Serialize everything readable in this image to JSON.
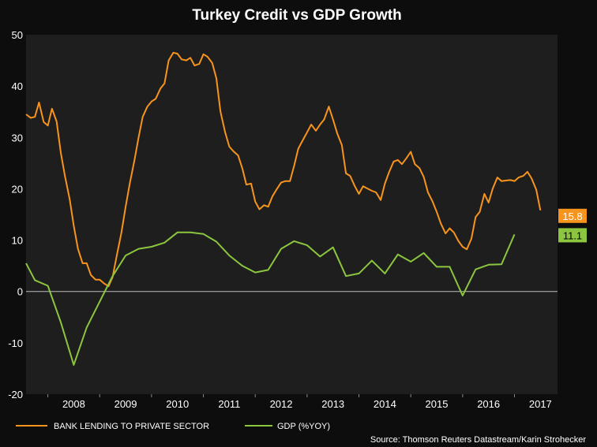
{
  "chart_data": {
    "type": "line",
    "title": "Turkey Credit vs GDP Growth",
    "ylim": [
      -20,
      50
    ],
    "y_ticks": [
      -20,
      -10,
      0,
      10,
      20,
      30,
      40,
      50
    ],
    "x_ticks": [
      "2008",
      "2009",
      "2010",
      "2011",
      "2012",
      "2013",
      "2014",
      "2015",
      "2016",
      "2017"
    ],
    "x_range": [
      2007.58,
      2017.83
    ],
    "grid": false,
    "zero_line": true,
    "legend_position": "bottom-left",
    "source": "Source: Thomson Reuters Datastream/Karin Strohecker",
    "series": [
      {
        "name": "BANK LENDING TO PRIVATE SECTOR",
        "color": "#f7941d",
        "last_label": "15.8",
        "points": [
          [
            2007.58,
            34.5
          ],
          [
            2007.67,
            33.8
          ],
          [
            2007.75,
            34.0
          ],
          [
            2007.83,
            36.8
          ],
          [
            2007.92,
            33.0
          ],
          [
            2008.0,
            32.3
          ],
          [
            2008.08,
            35.6
          ],
          [
            2008.17,
            33.1
          ],
          [
            2008.25,
            27.0
          ],
          [
            2008.33,
            22.5
          ],
          [
            2008.42,
            18.0
          ],
          [
            2008.5,
            12.8
          ],
          [
            2008.58,
            8.3
          ],
          [
            2008.67,
            5.5
          ],
          [
            2008.75,
            5.5
          ],
          [
            2008.83,
            3.2
          ],
          [
            2008.92,
            2.3
          ],
          [
            2009.0,
            2.3
          ],
          [
            2009.08,
            1.6
          ],
          [
            2009.17,
            1.0
          ],
          [
            2009.25,
            2.8
          ],
          [
            2009.33,
            7.0
          ],
          [
            2009.42,
            11.5
          ],
          [
            2009.5,
            16.5
          ],
          [
            2009.58,
            21.0
          ],
          [
            2009.67,
            25.5
          ],
          [
            2009.75,
            30.0
          ],
          [
            2009.83,
            34.0
          ],
          [
            2009.92,
            36.0
          ],
          [
            2010.0,
            37.0
          ],
          [
            2010.08,
            37.5
          ],
          [
            2010.17,
            39.5
          ],
          [
            2010.25,
            40.5
          ],
          [
            2010.33,
            45.0
          ],
          [
            2010.42,
            46.5
          ],
          [
            2010.5,
            46.3
          ],
          [
            2010.58,
            45.2
          ],
          [
            2010.67,
            45.0
          ],
          [
            2010.75,
            45.5
          ],
          [
            2010.83,
            44.0
          ],
          [
            2010.92,
            44.3
          ],
          [
            2011.0,
            46.2
          ],
          [
            2011.08,
            45.7
          ],
          [
            2011.17,
            44.5
          ],
          [
            2011.25,
            41.5
          ],
          [
            2011.33,
            35.0
          ],
          [
            2011.42,
            31.0
          ],
          [
            2011.5,
            28.2
          ],
          [
            2011.58,
            27.3
          ],
          [
            2011.67,
            26.5
          ],
          [
            2011.75,
            24.0
          ],
          [
            2011.83,
            20.8
          ],
          [
            2011.92,
            21.0
          ],
          [
            2012.0,
            17.5
          ],
          [
            2012.08,
            16.0
          ],
          [
            2012.17,
            16.8
          ],
          [
            2012.25,
            16.5
          ],
          [
            2012.33,
            18.5
          ],
          [
            2012.42,
            20.0
          ],
          [
            2012.5,
            21.2
          ],
          [
            2012.58,
            21.5
          ],
          [
            2012.67,
            21.5
          ],
          [
            2012.75,
            24.5
          ],
          [
            2012.83,
            27.8
          ],
          [
            2012.92,
            29.5
          ],
          [
            2013.0,
            31.0
          ],
          [
            2013.08,
            32.5
          ],
          [
            2013.17,
            31.3
          ],
          [
            2013.25,
            32.5
          ],
          [
            2013.33,
            33.5
          ],
          [
            2013.42,
            36.0
          ],
          [
            2013.5,
            33.5
          ],
          [
            2013.58,
            30.8
          ],
          [
            2013.67,
            28.5
          ],
          [
            2013.75,
            23.0
          ],
          [
            2013.83,
            22.5
          ],
          [
            2013.92,
            20.5
          ],
          [
            2014.0,
            19.0
          ],
          [
            2014.08,
            20.5
          ],
          [
            2014.17,
            20.0
          ],
          [
            2014.25,
            19.6
          ],
          [
            2014.33,
            19.3
          ],
          [
            2014.42,
            17.8
          ],
          [
            2014.5,
            21.0
          ],
          [
            2014.58,
            23.2
          ],
          [
            2014.67,
            25.3
          ],
          [
            2014.75,
            25.6
          ],
          [
            2014.83,
            24.8
          ],
          [
            2014.92,
            26.0
          ],
          [
            2015.0,
            27.2
          ],
          [
            2015.08,
            24.8
          ],
          [
            2015.17,
            24.0
          ],
          [
            2015.25,
            22.3
          ],
          [
            2015.33,
            19.3
          ],
          [
            2015.42,
            17.5
          ],
          [
            2015.5,
            15.5
          ],
          [
            2015.58,
            13.2
          ],
          [
            2015.67,
            11.3
          ],
          [
            2015.75,
            12.3
          ],
          [
            2015.83,
            11.5
          ],
          [
            2015.92,
            9.8
          ],
          [
            2016.0,
            8.7
          ],
          [
            2016.08,
            8.2
          ],
          [
            2016.17,
            10.3
          ],
          [
            2016.25,
            14.5
          ],
          [
            2016.33,
            15.5
          ],
          [
            2016.42,
            19.0
          ],
          [
            2016.5,
            17.3
          ],
          [
            2016.58,
            20.0
          ],
          [
            2016.67,
            22.2
          ],
          [
            2016.75,
            21.5
          ],
          [
            2016.83,
            21.6
          ],
          [
            2016.92,
            21.7
          ],
          [
            2017.0,
            21.5
          ],
          [
            2017.08,
            22.2
          ],
          [
            2017.17,
            22.5
          ],
          [
            2017.25,
            23.3
          ],
          [
            2017.33,
            22.0
          ],
          [
            2017.42,
            19.8
          ],
          [
            2017.5,
            15.8
          ]
        ]
      },
      {
        "name": "GDP (%YOY)",
        "color": "#8cc63f",
        "last_label": "11.1",
        "points": [
          [
            2007.58,
            5.5
          ],
          [
            2007.75,
            2.2
          ],
          [
            2008.0,
            1.1
          ],
          [
            2008.25,
            -6.0
          ],
          [
            2008.5,
            -14.3
          ],
          [
            2008.75,
            -7.0
          ],
          [
            2009.0,
            -2.0
          ],
          [
            2009.25,
            3.0
          ],
          [
            2009.5,
            7.0
          ],
          [
            2009.75,
            8.3
          ],
          [
            2010.0,
            8.7
          ],
          [
            2010.25,
            9.5
          ],
          [
            2010.5,
            11.5
          ],
          [
            2010.75,
            11.5
          ],
          [
            2011.0,
            11.2
          ],
          [
            2011.25,
            9.7
          ],
          [
            2011.5,
            7.0
          ],
          [
            2011.75,
            5.0
          ],
          [
            2012.0,
            3.7
          ],
          [
            2012.25,
            4.2
          ],
          [
            2012.5,
            8.3
          ],
          [
            2012.75,
            9.8
          ],
          [
            2013.0,
            9.0
          ],
          [
            2013.25,
            6.8
          ],
          [
            2013.5,
            8.6
          ],
          [
            2013.75,
            3.0
          ],
          [
            2014.0,
            3.5
          ],
          [
            2014.25,
            6.0
          ],
          [
            2014.5,
            3.5
          ],
          [
            2014.75,
            7.2
          ],
          [
            2015.0,
            5.8
          ],
          [
            2015.25,
            7.5
          ],
          [
            2015.5,
            4.8
          ],
          [
            2015.75,
            4.8
          ],
          [
            2016.0,
            -0.8
          ],
          [
            2016.25,
            4.3
          ],
          [
            2016.5,
            5.2
          ],
          [
            2016.75,
            5.3
          ],
          [
            2017.0,
            11.1
          ]
        ]
      }
    ]
  }
}
